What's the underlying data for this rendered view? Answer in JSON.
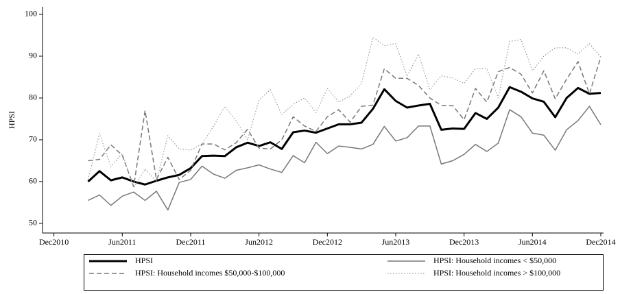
{
  "chart_data": {
    "type": "line",
    "y_label": "HPSI",
    "x": [
      "2011-03",
      "2011-04",
      "2011-05",
      "2011-06",
      "2011-07",
      "2011-08",
      "2011-09",
      "2011-10",
      "2011-11",
      "2011-12",
      "2012-01",
      "2012-02",
      "2012-03",
      "2012-04",
      "2012-05",
      "2012-06",
      "2012-07",
      "2012-08",
      "2012-09",
      "2012-10",
      "2012-11",
      "2012-12",
      "2013-01",
      "2013-02",
      "2013-03",
      "2013-04",
      "2013-05",
      "2013-06",
      "2013-07",
      "2013-08",
      "2013-09",
      "2013-10",
      "2013-11",
      "2013-12",
      "2014-01",
      "2014-02",
      "2014-03",
      "2014-04",
      "2014-05",
      "2014-06",
      "2014-07",
      "2014-08",
      "2014-09",
      "2014-10",
      "2014-11",
      "2014-12"
    ],
    "xlim": [
      "2010-11",
      "2014-12"
    ],
    "xticks": [
      {
        "value": "2010-12",
        "label": "Dec2010"
      },
      {
        "value": "2011-06",
        "label": "Jun2011"
      },
      {
        "value": "2011-12",
        "label": "Dec2011"
      },
      {
        "value": "2012-06",
        "label": "Jun2012"
      },
      {
        "value": "2012-12",
        "label": "Dec2012"
      },
      {
        "value": "2013-06",
        "label": "Jun2013"
      },
      {
        "value": "2013-12",
        "label": "Dec2013"
      },
      {
        "value": "2014-06",
        "label": "Jun2014"
      },
      {
        "value": "2014-12",
        "label": "Dec2014"
      }
    ],
    "ylim": [
      47.7,
      101.8
    ],
    "yticks": [
      50,
      60,
      70,
      80,
      90,
      100
    ],
    "legend": "bottom",
    "series": [
      {
        "name": "HPSI",
        "color": "#000000",
        "width": 3,
        "dash": "solid",
        "values": [
          60.0,
          62.5,
          60.3,
          61.0,
          60.0,
          59.3,
          60.2,
          61.0,
          61.6,
          63.2,
          66.1,
          66.2,
          66.1,
          68.2,
          69.3,
          68.5,
          69.4,
          67.8,
          71.8,
          72.2,
          71.7,
          72.7,
          73.7,
          73.7,
          74.1,
          77.4,
          82.1,
          79.3,
          77.7,
          78.2,
          78.6,
          72.4,
          72.7,
          72.6,
          76.4,
          75.0,
          77.7,
          82.6,
          81.5,
          79.9,
          79.1,
          75.4,
          80.0,
          82.4,
          81.0,
          81.2
        ]
      },
      {
        "name": "HPSI: Household incomes < $50,000",
        "color": "#777777",
        "width": 1.5,
        "dash": "solid",
        "values": [
          55.5,
          56.8,
          54.3,
          56.5,
          57.5,
          55.5,
          57.7,
          53.2,
          59.8,
          60.5,
          63.7,
          61.8,
          60.8,
          62.7,
          63.3,
          64.0,
          63.0,
          62.2,
          66.2,
          64.5,
          69.4,
          66.7,
          68.5,
          68.2,
          67.8,
          68.9,
          73.2,
          69.7,
          70.5,
          73.3,
          73.3,
          64.2,
          65.0,
          66.5,
          68.9,
          67.2,
          69.2,
          77.2,
          75.5,
          71.6,
          71.1,
          67.5,
          72.4,
          74.6,
          78.0,
          73.6
        ]
      },
      {
        "name": "HPSI: Household incomes $50,000-$100,000",
        "color": "#777777",
        "width": 1.5,
        "dash": "dashed",
        "values": [
          65.0,
          65.3,
          68.8,
          66.3,
          58.8,
          77.0,
          60.5,
          65.8,
          60.5,
          62.7,
          69.0,
          69.0,
          67.6,
          69.3,
          72.5,
          68.0,
          67.8,
          70.0,
          75.5,
          73.3,
          72.0,
          75.5,
          77.2,
          74.2,
          78.0,
          78.3,
          87.0,
          84.7,
          84.7,
          83.0,
          80.0,
          78.2,
          78.2,
          74.8,
          82.3,
          79.0,
          86.3,
          87.3,
          85.7,
          81.2,
          86.5,
          79.8,
          84.5,
          88.7,
          81.0,
          89.8
        ]
      },
      {
        "name": "HPSI: Household incomes > $100,000",
        "color": "#999999",
        "width": 1.2,
        "dash": "dotted",
        "values": [
          60.5,
          71.5,
          63.5,
          66.7,
          58.5,
          63.0,
          60.0,
          71.0,
          67.8,
          67.5,
          69.0,
          73.2,
          78.0,
          74.5,
          70.0,
          79.5,
          82.0,
          76.0,
          78.5,
          80.0,
          76.5,
          82.3,
          79.0,
          80.5,
          83.5,
          94.5,
          92.5,
          93.0,
          85.2,
          90.5,
          82.0,
          85.3,
          84.8,
          83.5,
          87.0,
          87.0,
          80.0,
          93.5,
          94.0,
          86.5,
          90.0,
          92.0,
          92.0,
          90.5,
          93.0,
          89.8
        ]
      }
    ]
  }
}
